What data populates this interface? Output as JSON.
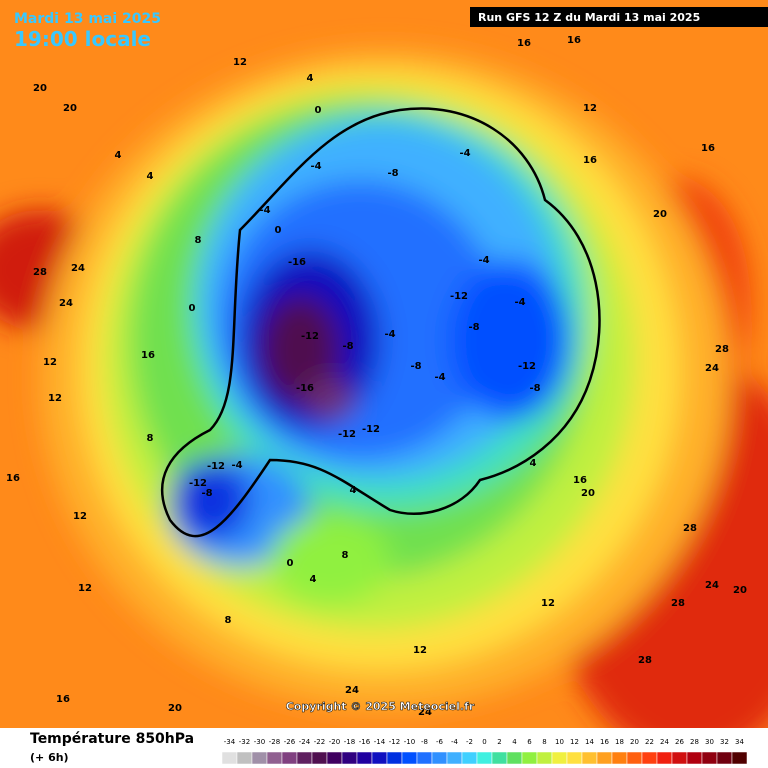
{
  "header": {
    "date": "Mardi 13 mai 2025",
    "time": "19:00 locale",
    "run": "Run GFS 12 Z du Mardi 13 mai 2025"
  },
  "copyright": "Copyright © 2025 Meteociel.fr",
  "footer": {
    "title": "Température 850hPa",
    "lead": "(+ 6h)"
  },
  "scale": {
    "ticks": [
      -34,
      -32,
      -30,
      -28,
      -26,
      -24,
      -22,
      -20,
      -18,
      -16,
      -14,
      -12,
      -10,
      -8,
      -6,
      -4,
      -2,
      0,
      2,
      4,
      6,
      8,
      10,
      12,
      14,
      16,
      18,
      20,
      22,
      24,
      26,
      28,
      30,
      32,
      34
    ],
    "colors": [
      "#e0e0e0",
      "#c0c0c0",
      "#a090a8",
      "#906090",
      "#804080",
      "#602060",
      "#501050",
      "#400060",
      "#300080",
      "#2000a0",
      "#1010c0",
      "#0030e0",
      "#0050ff",
      "#2070ff",
      "#3090ff",
      "#40b0ff",
      "#40d0ff",
      "#40f0e0",
      "#40e0a0",
      "#60e060",
      "#90f040",
      "#c0f040",
      "#f0f040",
      "#ffe040",
      "#ffc030",
      "#ffa020",
      "#ff8010",
      "#ff6010",
      "#ff4010",
      "#f02010",
      "#d01010",
      "#b00010",
      "#900010",
      "#700010",
      "#500000"
    ]
  },
  "map_labels": [
    "20",
    "20",
    "28",
    "24",
    "24",
    "16",
    "12",
    "12",
    "16",
    "12",
    "12",
    "16",
    "20",
    "24",
    "24",
    "28",
    "28",
    "28",
    "24",
    "20",
    "28",
    "24",
    "20",
    "16",
    "16",
    "12",
    "16",
    "16",
    "12",
    "4",
    "0",
    "-4",
    "-8",
    "-4",
    "-16",
    "-12",
    "-16",
    "-8",
    "-4",
    "-8",
    "-12",
    "-8",
    "-12",
    "-8",
    "-12",
    "-12",
    "-12",
    "-12",
    "-8",
    "-4",
    "4",
    "0",
    "4",
    "8",
    "8",
    "12",
    "4",
    "16",
    "20",
    "8",
    "4",
    "4",
    "8",
    "0",
    "-4",
    "0",
    "-4",
    "-4",
    "-4",
    "12"
  ]
}
